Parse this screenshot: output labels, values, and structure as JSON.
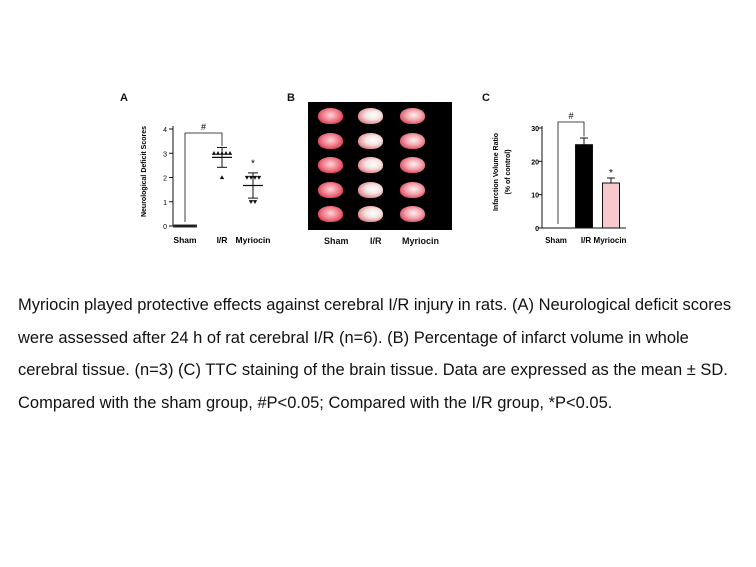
{
  "panels": {
    "a": {
      "letter": "A"
    },
    "b": {
      "letter": "B"
    },
    "c": {
      "letter": "C"
    }
  },
  "chart_data": [
    {
      "panel": "A",
      "type": "scatter",
      "ylabel": "Neurological Deficit Scores",
      "xlabel": "",
      "categories": [
        "Sham",
        "I/R",
        "Myriocin"
      ],
      "ylim": [
        0,
        4
      ],
      "yticks": [
        0,
        1,
        2,
        3,
        4
      ],
      "points": [
        {
          "group": "Sham",
          "values": [
            0,
            0,
            0,
            0,
            0,
            0
          ]
        },
        {
          "group": "I/R",
          "values": [
            3,
            3,
            3,
            3,
            3,
            2
          ]
        },
        {
          "group": "Myriocin",
          "values": [
            2,
            2,
            2,
            2,
            1,
            1
          ]
        }
      ],
      "means": [
        0,
        2.83,
        1.67
      ],
      "sd": [
        0,
        0.41,
        0.52
      ],
      "annotations": [
        {
          "text": "#",
          "between": [
            "Sham",
            "I/R"
          ]
        },
        {
          "text": "*",
          "above": "Myriocin"
        }
      ]
    },
    {
      "panel": "C",
      "type": "bar",
      "ylabel": "Infarction Volume Ratio",
      "ylabel2": "(% of control)",
      "xlabel": "",
      "categories": [
        "Sham",
        "I/R",
        "Myriocin"
      ],
      "values": [
        0,
        25,
        13.5
      ],
      "errors": [
        0,
        2,
        1.5
      ],
      "ylim": [
        0,
        30
      ],
      "yticks": [
        0,
        10,
        20,
        30
      ],
      "colors": [
        "#ffffff",
        "#000000",
        "#f6c9cc"
      ],
      "annotations": [
        {
          "text": "#",
          "between": [
            "Sham",
            "I/R"
          ]
        },
        {
          "text": "*",
          "above": "Myriocin"
        }
      ]
    }
  ],
  "photo": {
    "labels": [
      "Sham",
      "I/R",
      "Myriocin"
    ]
  },
  "caption": "Myriocin played protective effects against cerebral I/R injury in rats. (A) Neurological deficit scores were assessed after 24 h of rat cerebral I/R (n=6). (B) Percentage of infarct volume in whole cerebral tissue. (n=3) (C) TTC staining of the brain tissue. Data are expressed as the mean ± SD. Compared with the sham group, #P<0.05; Compared with the I/R group, *P<0.05."
}
